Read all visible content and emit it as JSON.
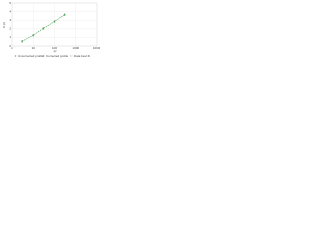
{
  "chart_data": {
    "type": "scatter",
    "y_label": "ln (I)",
    "x_label": "q²",
    "x": [
      3,
      10,
      30,
      100,
      300
    ],
    "series": [
      {
        "name": "Uncorrected profile",
        "color": "#9e9e9e",
        "mode": "points",
        "values": [
          0.6,
          1.3,
          2.1,
          2.9,
          3.7
        ]
      },
      {
        "name": "Corrected profile",
        "color": "#4caf50",
        "mode": "points",
        "values": [
          0.5,
          1.2,
          2.0,
          2.8,
          3.6
        ]
      },
      {
        "name": "Data best fit",
        "color": "#43a047",
        "mode": "line",
        "values": [
          0.55,
          1.25,
          2.05,
          2.85,
          3.65
        ]
      }
    ],
    "xlim": [
      1,
      10000
    ],
    "xticks": [
      1,
      10,
      100,
      1000,
      10000
    ],
    "xlog": true,
    "ylim": [
      0,
      5
    ],
    "yticks": [
      0,
      1,
      2,
      3,
      4,
      5
    ],
    "grid": true
  }
}
